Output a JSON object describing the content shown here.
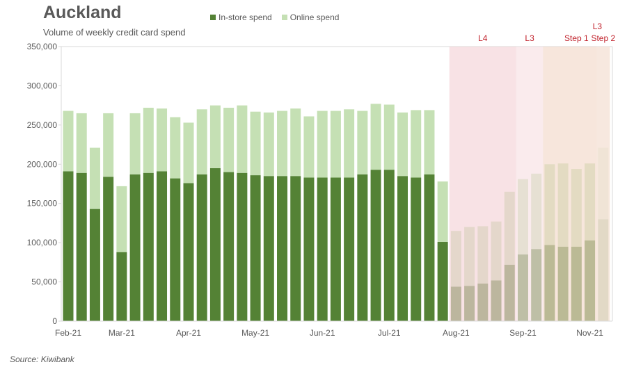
{
  "chart_data": {
    "type": "bar",
    "stacked": true,
    "title": "Auckland",
    "subtitle": "Volume of weekly credit card spend",
    "xlabel": "",
    "ylabel": "",
    "ylim": [
      0,
      350000
    ],
    "yticks": [
      0,
      50000,
      100000,
      150000,
      200000,
      250000,
      300000,
      350000
    ],
    "ytick_labels": [
      "0",
      "50,000",
      "100,000",
      "150,000",
      "200,000",
      "250,000",
      "300,000",
      "350,000"
    ],
    "grid": false,
    "legend_position": "top",
    "xtick_labels": [
      {
        "index": 0,
        "label": "Feb-21"
      },
      {
        "index": 4,
        "label": "Mar-21"
      },
      {
        "index": 9,
        "label": "Apr-21"
      },
      {
        "index": 14,
        "label": "May-21"
      },
      {
        "index": 19,
        "label": "Jun-21"
      },
      {
        "index": 24,
        "label": "Jul-21"
      },
      {
        "index": 29,
        "label": "Aug-21"
      },
      {
        "index": 34,
        "label": "Sep-21"
      },
      {
        "index": 39,
        "label": "Nov-21"
      }
    ],
    "series": [
      {
        "name": "In-store spend",
        "color": "#548235",
        "values": [
          191000,
          189000,
          143000,
          184000,
          88000,
          187000,
          189000,
          191000,
          182000,
          176000,
          187000,
          195000,
          190000,
          189000,
          186000,
          185000,
          185000,
          185000,
          183000,
          183000,
          183000,
          183000,
          187000,
          193000,
          193000,
          185000,
          183000,
          187000,
          101000,
          44000,
          45000,
          48000,
          52000,
          72000,
          85000,
          92000,
          97000,
          95000,
          95000,
          103000,
          130000
        ]
      },
      {
        "name": "Online spend",
        "color": "#c5e0b4",
        "values": [
          77000,
          76000,
          78000,
          81000,
          84000,
          78000,
          83000,
          80000,
          78000,
          77000,
          83000,
          80000,
          82000,
          86000,
          81000,
          81000,
          83000,
          86000,
          78000,
          85000,
          85000,
          87000,
          81000,
          84000,
          83000,
          81000,
          86000,
          82000,
          77000,
          71000,
          75000,
          73000,
          75000,
          93000,
          96000,
          96000,
          103000,
          106000,
          99000,
          98000,
          91000
        ]
      }
    ],
    "shaded_periods": [
      {
        "label": "L4",
        "start_index": 29,
        "end_index": 33,
        "color": "#f4d3d7"
      },
      {
        "label": "L3",
        "start_index": 34,
        "end_index": 35,
        "color": "#f7e1e3"
      },
      {
        "label": "Step 1",
        "start_index": 36,
        "end_index": 40,
        "color": "#f2d9ca",
        "extra_label": "L3"
      },
      {
        "label": "Step 2",
        "start_index": 40,
        "end_index": 40,
        "color": "#f7e9e0"
      }
    ]
  },
  "legend": {
    "instore_label": "In-store spend",
    "online_label": "Online spend",
    "instore_color": "#548235",
    "online_color": "#c5e0b4"
  },
  "source": "Source: Kiwibank"
}
